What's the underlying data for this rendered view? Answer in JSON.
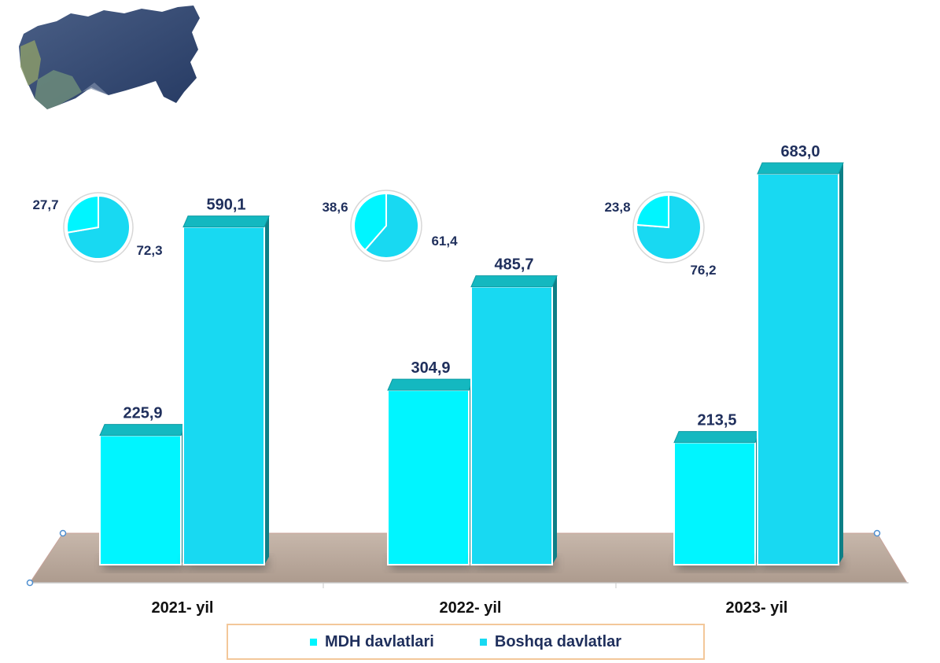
{
  "chart_data": {
    "type": "bar",
    "categories": [
      "2021- yil",
      "2022- yil",
      "2023- yil"
    ],
    "series": [
      {
        "name": "MDH davlatlari",
        "values": [
          225.9,
          304.9,
          213.5
        ],
        "value_labels": [
          "225,9",
          "304,9",
          "213,5"
        ],
        "color": "#00f5ff"
      },
      {
        "name": "Boshqa davlatlar",
        "values": [
          590.1,
          485.7,
          683.0
        ],
        "value_labels": [
          "590,1",
          "485,7",
          "683,0"
        ],
        "color": "#18d9f2"
      }
    ],
    "ylim": [
      0,
      683.0
    ],
    "grid": false,
    "legend_position": "bottom",
    "pies": [
      {
        "values": [
          27.7,
          72.3
        ],
        "labels": [
          "27,7",
          "72,3"
        ]
      },
      {
        "values": [
          38.6,
          61.4
        ],
        "labels": [
          "38,6",
          "61,4"
        ]
      },
      {
        "values": [
          23.8,
          76.2
        ],
        "labels": [
          "23,8",
          "76,2"
        ]
      }
    ]
  },
  "legend": {
    "item1": "MDH davlatlari",
    "item2": "Boshqa davlatlar"
  },
  "colors": {
    "mdh": "#00f5ff",
    "boshqa": "#18d9f2",
    "bar_top": "#14b8c0",
    "bar_side": "#0d7f86",
    "floor": "#b9a99d",
    "label": "#1f2f5c",
    "legend_border": "#f3c79a"
  },
  "icons": {
    "logo": "map-of-russia-icon"
  }
}
